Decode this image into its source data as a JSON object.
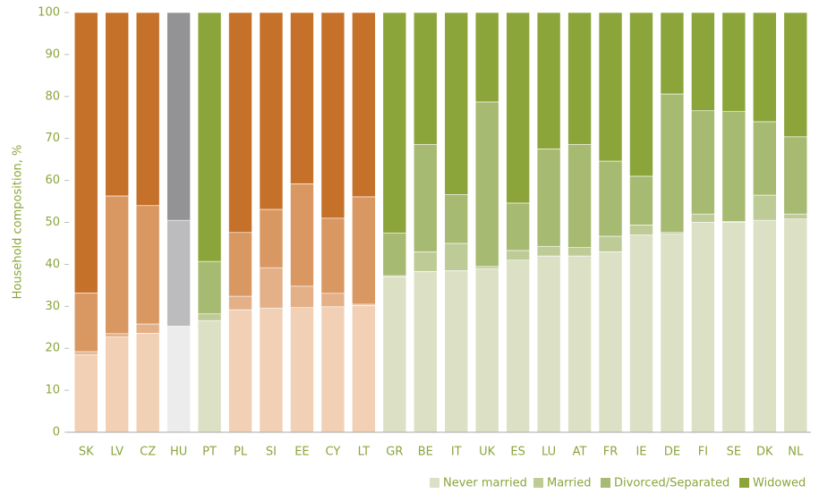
{
  "chart_data": {
    "type": "stacked_bar",
    "y_label": "Household composition, %",
    "categories": [
      "SK",
      "LV",
      "CZ",
      "HU",
      "PT",
      "PL",
      "SI",
      "EE",
      "CY",
      "LT",
      "GR",
      "BE",
      "IT",
      "UK",
      "ES",
      "LU",
      "AT",
      "FR",
      "IE",
      "DE",
      "FI",
      "SE",
      "DK",
      "NL"
    ],
    "series": [
      {
        "name": "Never married",
        "color": "#dce1c5",
        "values": [
          18.5,
          22.7,
          23.6,
          25,
          26.6,
          29.2,
          29.6,
          29.7,
          29.9,
          30.2,
          37,
          38.3,
          38.5,
          39,
          41,
          42,
          42,
          43,
          47,
          47.2,
          50,
          50,
          50.5,
          50.8
        ]
      },
      {
        "name": "Married",
        "color": "#bfcb97",
        "values": [
          0.7,
          0.8,
          2.2,
          0.3,
          1.6,
          3.2,
          9.6,
          5.1,
          3.2,
          0.3,
          0.3,
          4.7,
          6.5,
          0.5,
          2.3,
          2.3,
          2,
          3.7,
          2.4,
          0.4,
          2,
          0.2,
          6,
          1.2
        ]
      },
      {
        "name": "Divorced/Separated",
        "color": "#a7ba72",
        "values": [
          14,
          32.8,
          28.2,
          25.2,
          12.5,
          15.2,
          13.9,
          24.4,
          17.9,
          25.6,
          10.2,
          25.6,
          11.6,
          39.2,
          11.3,
          23.2,
          24.6,
          17.9,
          11.6,
          33,
          24.6,
          26.2,
          17.5,
          18.4
        ]
      },
      {
        "name": "Widowed",
        "color": "#8ba53b",
        "values": [
          66.8,
          43.7,
          46,
          49.5,
          59.3,
          52.4,
          46.9,
          40.8,
          49,
          43.9,
          52.5,
          31.4,
          43.4,
          21.3,
          45.4,
          32.5,
          31.4,
          35.4,
          39,
          19.4,
          23.4,
          23.6,
          26,
          29.6
        ]
      }
    ],
    "alt_palettes": [
      [
        "#f1d0b5",
        "#e4b088",
        "#d99862",
        "#c5712a"
      ],
      [
        "#ececed",
        "#d3d3d5",
        "#bcbcbe",
        "#939395"
      ]
    ],
    "bar_palette": [
      0,
      0,
      0,
      1,
      null,
      0,
      0,
      0,
      0,
      0,
      null,
      null,
      null,
      null,
      null,
      null,
      null,
      null,
      null,
      null,
      null,
      null,
      null,
      null
    ],
    "ylim": [
      0,
      100
    ],
    "yticks": [
      0,
      10,
      20,
      30,
      40,
      50,
      60,
      70,
      80,
      90,
      100
    ],
    "label_color": "#8ba53b",
    "legend": "bottom-right"
  }
}
